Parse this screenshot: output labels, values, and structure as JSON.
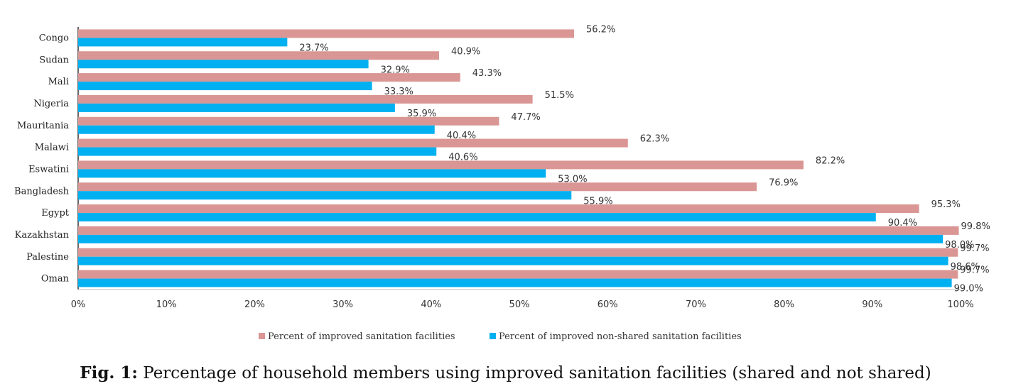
{
  "chart_data": {
    "type": "bar",
    "orientation": "horizontal",
    "categories": [
      "Congo",
      "Sudan",
      "Mali",
      "Nigeria",
      "Mauritania",
      "Malawi",
      "Eswatini",
      "Bangladesh",
      "Egypt",
      "Kazakhstan",
      "Palestine",
      "Oman"
    ],
    "series": [
      {
        "name": "Percent of improved sanitation facilities",
        "color": "#DA9694",
        "values": [
          56.2,
          40.9,
          43.3,
          51.5,
          47.7,
          62.3,
          82.2,
          76.9,
          95.3,
          99.8,
          99.7,
          99.7
        ],
        "labels": [
          "56.2%",
          "40.9%",
          "43.3%",
          "51.5%",
          "47.7%",
          "62.3%",
          "82.2%",
          "76.9%",
          "95.3%",
          "99.8%",
          "99.7%",
          "99.7%"
        ]
      },
      {
        "name": "Percent of improved non-shared sanitation facilities",
        "color": "#00B0F0",
        "values": [
          23.7,
          32.9,
          33.3,
          35.9,
          40.4,
          40.6,
          53.0,
          55.9,
          90.4,
          98.0,
          98.6,
          99.0
        ],
        "labels": [
          "23.7%",
          "32.9%",
          "33.3%",
          "35.9%",
          "40.4%",
          "40.6%",
          "53.0%",
          "55.9%",
          "90.4%",
          "98.0%",
          "98.6%",
          "99.0%"
        ]
      }
    ],
    "xlim": [
      0,
      100
    ],
    "xticks": [
      0,
      10,
      20,
      30,
      40,
      50,
      60,
      70,
      80,
      90,
      100
    ],
    "xtick_labels": [
      "0%",
      "10%",
      "20%",
      "30%",
      "40%",
      "50%",
      "60%",
      "70%",
      "80%",
      "90%",
      "100%"
    ],
    "grid": false,
    "legend_position": "bottom"
  },
  "caption": {
    "label": "Fig. 1:",
    "text": " Percentage of household members using improved sanitation facilities (shared and not shared)"
  }
}
